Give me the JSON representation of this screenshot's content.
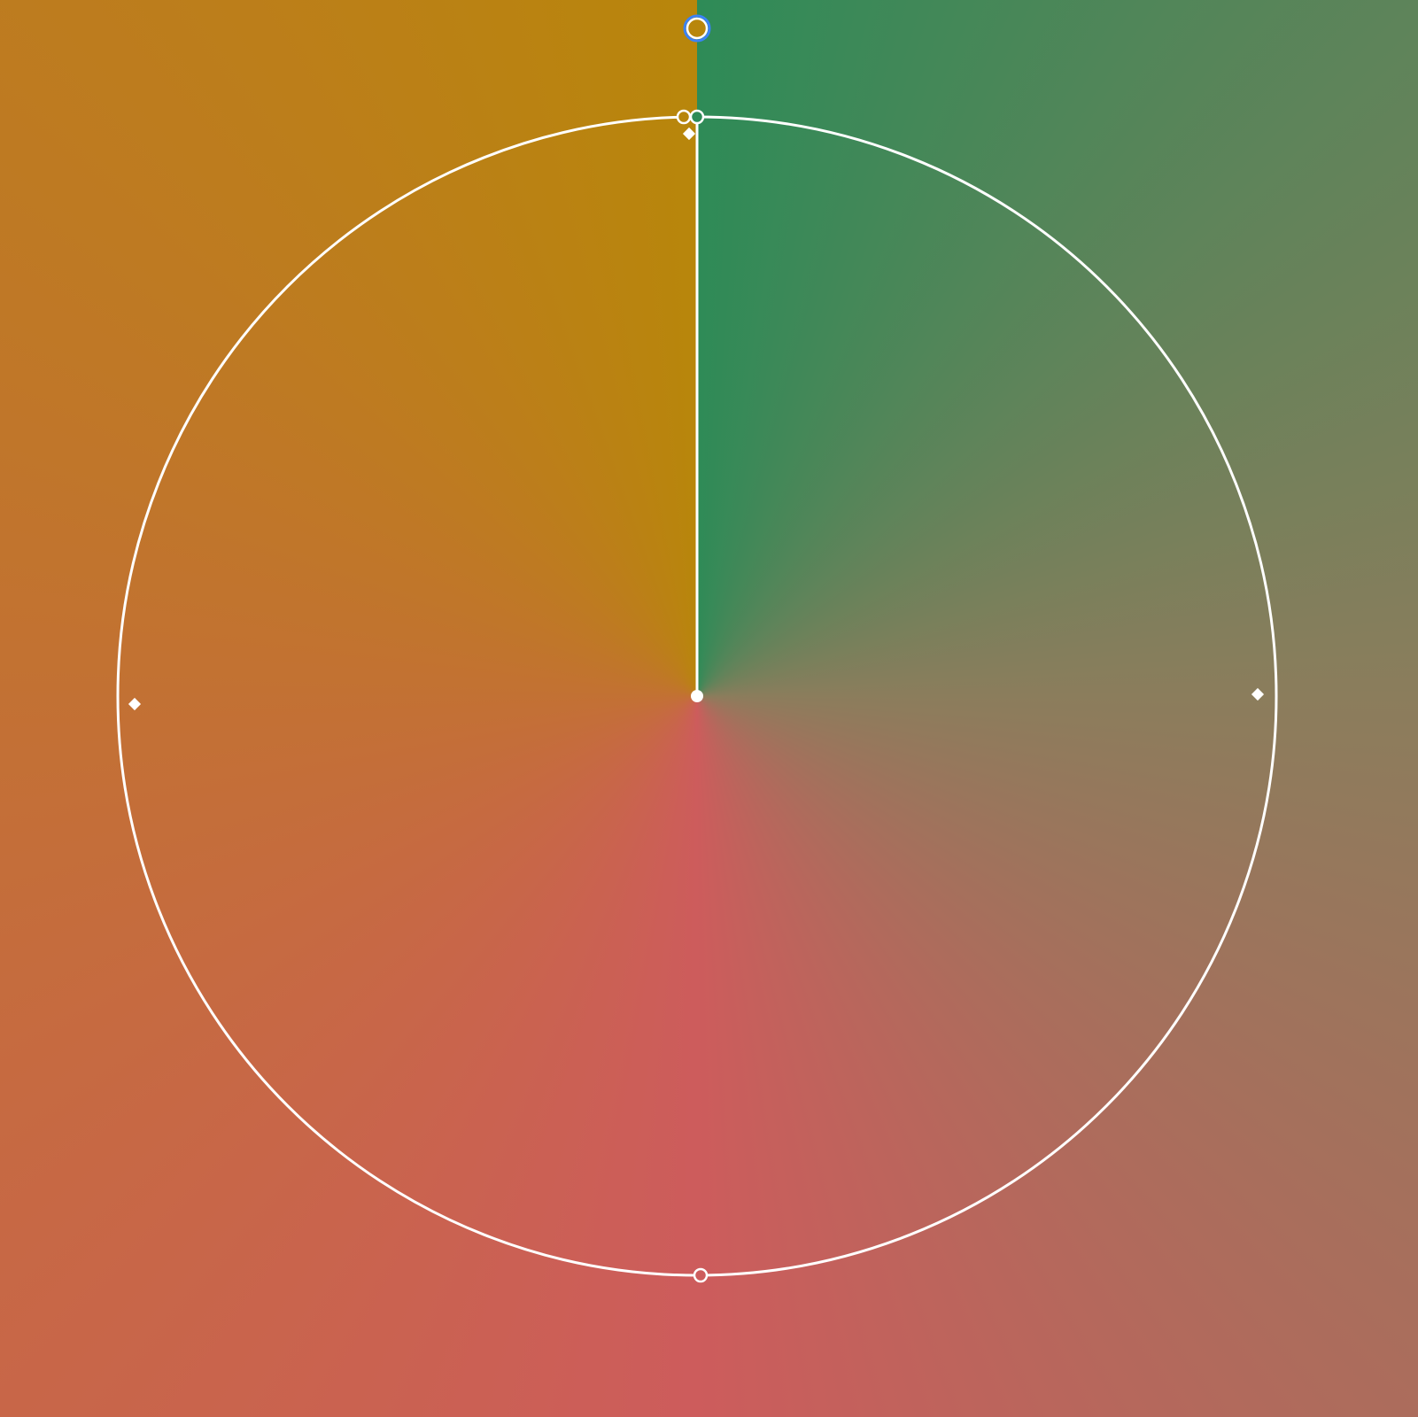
{
  "editor": {
    "tool": "conic-gradient-editor",
    "gradient": {
      "type": "conic",
      "start_angle_deg": 0,
      "stops": [
        {
          "color": "#2E8B57",
          "position": 0.0
        },
        {
          "color": "#8B7D5C",
          "position": 0.25
        },
        {
          "color": "#CD5C5C",
          "position": 0.5
        },
        {
          "color": "#B8860B",
          "position": 1.0
        }
      ]
    },
    "colors": {
      "overlay_stroke": "#FFFFFF",
      "selected_ring": "#3B82F6",
      "active_stop_fill": "#B8860B"
    },
    "handles": [
      {
        "name": "angle-handle",
        "kind": "rotation",
        "selected": true
      },
      {
        "name": "center-handle",
        "kind": "center"
      },
      {
        "name": "stop-handle-start",
        "kind": "color-stop",
        "color": "#2E8B57"
      },
      {
        "name": "stop-handle-end",
        "kind": "color-stop",
        "color": "#B8860B"
      },
      {
        "name": "stop-handle-mid",
        "kind": "color-stop",
        "color": "#CD5C5C"
      },
      {
        "name": "radius-handle-left",
        "kind": "diamond"
      },
      {
        "name": "radius-handle-right",
        "kind": "diamond"
      },
      {
        "name": "midpoint-handle-top",
        "kind": "diamond"
      }
    ]
  }
}
